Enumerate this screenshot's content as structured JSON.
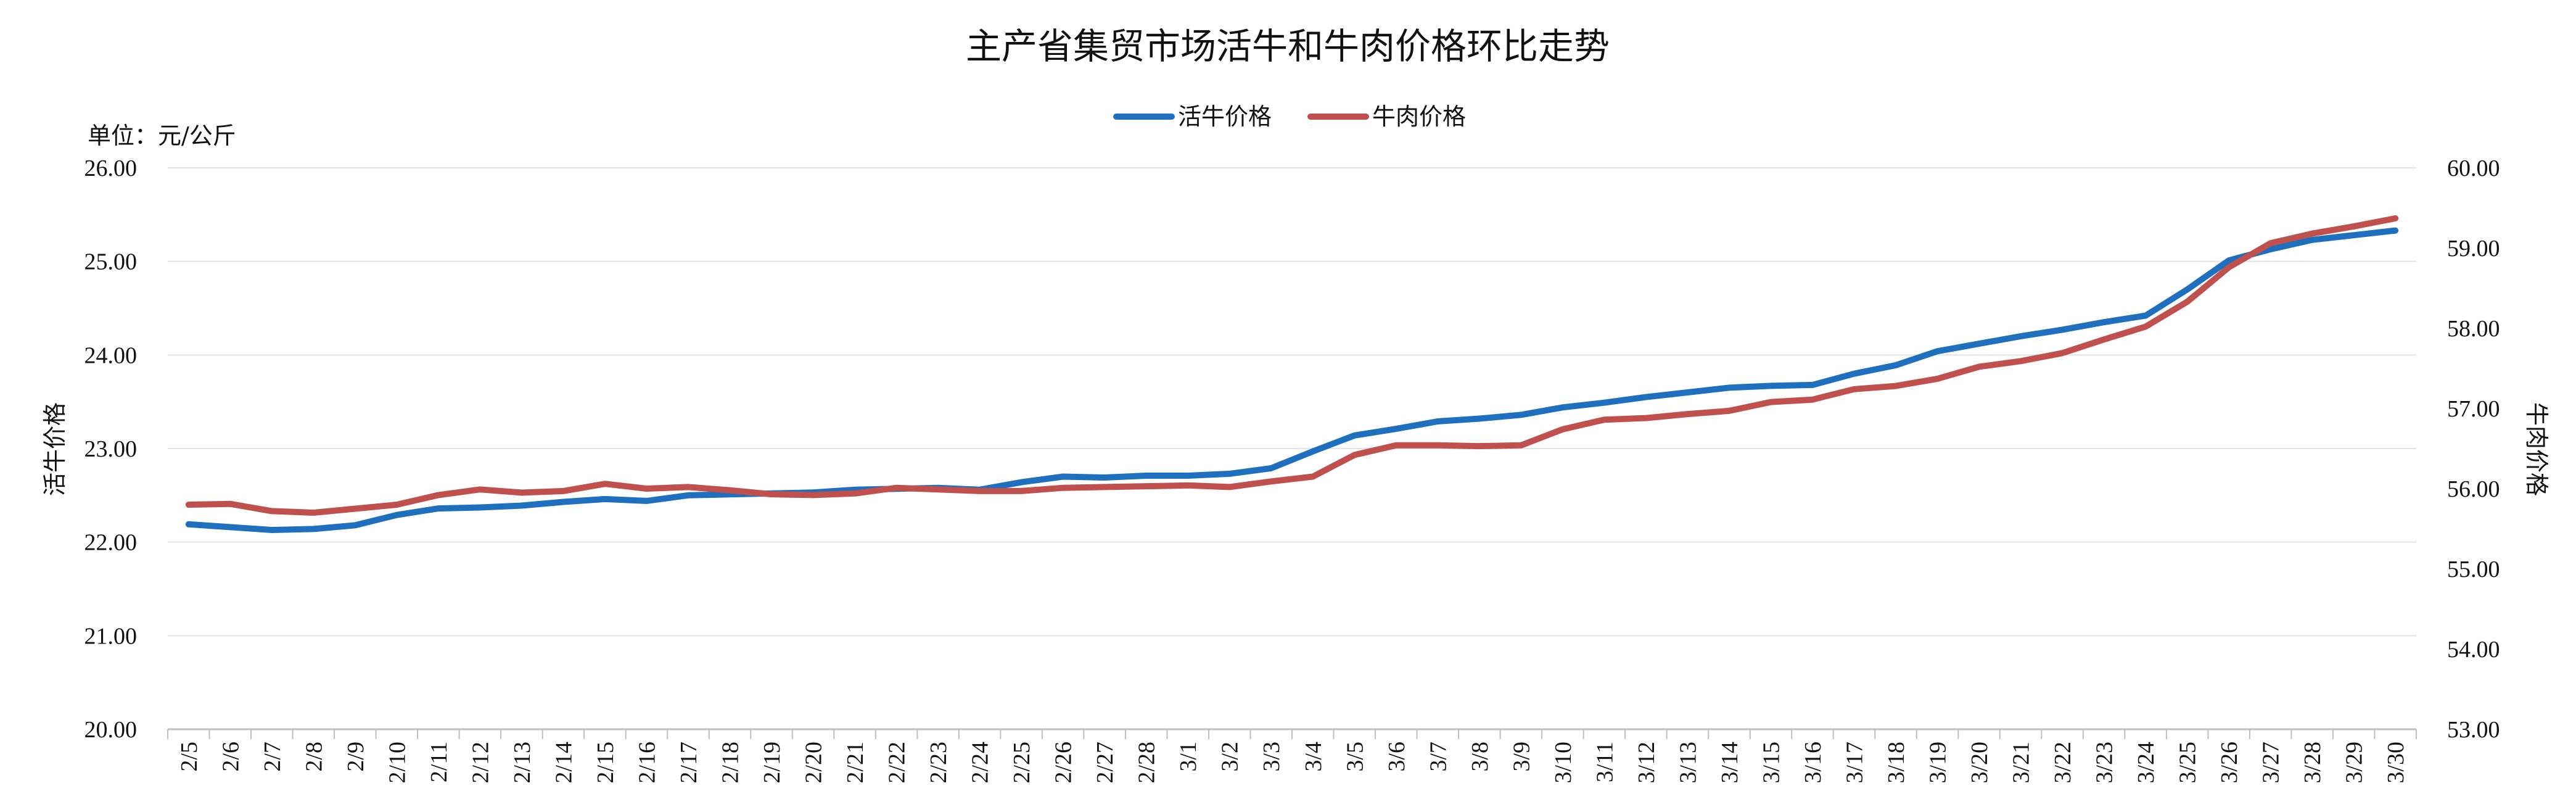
{
  "chart_data": {
    "type": "line",
    "title": "主产省集贸市场活牛和牛肉价格环比走势",
    "unit_label": "单位：元/公斤",
    "ylabel_left": "活牛价格",
    "ylabel_right": "牛肉价格",
    "ylim_left": [
      20,
      26
    ],
    "ylim_right": [
      53,
      60
    ],
    "yticks_left": [
      "20.00",
      "21.00",
      "22.00",
      "23.00",
      "24.00",
      "25.00",
      "26.00"
    ],
    "yticks_right": [
      "53.00",
      "54.00",
      "55.00",
      "56.00",
      "57.00",
      "58.00",
      "59.00",
      "60.00"
    ],
    "grid": true,
    "legend_position": "top-center",
    "categories": [
      "2/5",
      "2/6",
      "2/7",
      "2/8",
      "2/9",
      "2/10",
      "2/11",
      "2/12",
      "2/13",
      "2/14",
      "2/15",
      "2/16",
      "2/17",
      "2/18",
      "2/19",
      "2/20",
      "2/21",
      "2/22",
      "2/23",
      "2/24",
      "2/25",
      "2/26",
      "2/27",
      "2/28",
      "3/1",
      "3/2",
      "3/3",
      "3/4",
      "3/5",
      "3/6",
      "3/7",
      "3/8",
      "3/9",
      "3/10",
      "3/11",
      "3/12",
      "3/13",
      "3/14",
      "3/15",
      "3/16",
      "3/17",
      "3/18",
      "3/19",
      "3/20",
      "3/21",
      "3/22",
      "3/23",
      "3/24",
      "3/25",
      "3/26",
      "3/27",
      "3/28",
      "3/29",
      "3/30"
    ],
    "series": [
      {
        "name": "活牛价格",
        "axis": "left",
        "color": "#1f6fbf",
        "values": [
          22.19,
          22.16,
          22.13,
          22.14,
          22.18,
          22.29,
          22.36,
          22.37,
          22.39,
          22.43,
          22.46,
          22.44,
          22.5,
          22.51,
          22.52,
          22.53,
          22.56,
          22.57,
          22.58,
          22.56,
          22.64,
          22.7,
          22.69,
          22.71,
          22.71,
          22.73,
          22.79,
          22.97,
          23.14,
          23.21,
          23.29,
          23.32,
          23.36,
          23.44,
          23.49,
          23.55,
          23.6,
          23.65,
          23.67,
          23.68,
          23.8,
          23.89,
          24.04,
          24.12,
          24.2,
          24.27,
          24.35,
          24.42,
          24.7,
          25.01,
          25.13,
          25.23,
          25.28,
          25.33
        ]
      },
      {
        "name": "牛肉价格",
        "axis": "right",
        "color": "#c0504d",
        "values": [
          55.8,
          55.81,
          55.72,
          55.7,
          55.75,
          55.8,
          55.92,
          55.99,
          55.95,
          55.97,
          56.06,
          56.0,
          56.02,
          55.98,
          55.93,
          55.92,
          55.94,
          56.01,
          55.99,
          55.97,
          55.97,
          56.01,
          56.02,
          56.03,
          56.04,
          56.02,
          56.09,
          56.15,
          56.42,
          56.54,
          56.54,
          56.53,
          56.54,
          56.74,
          56.86,
          56.88,
          56.93,
          56.97,
          57.08,
          57.11,
          57.24,
          57.28,
          57.37,
          57.52,
          57.59,
          57.69,
          57.86,
          58.02,
          58.33,
          58.76,
          59.06,
          59.18,
          59.27,
          59.37
        ]
      }
    ]
  }
}
